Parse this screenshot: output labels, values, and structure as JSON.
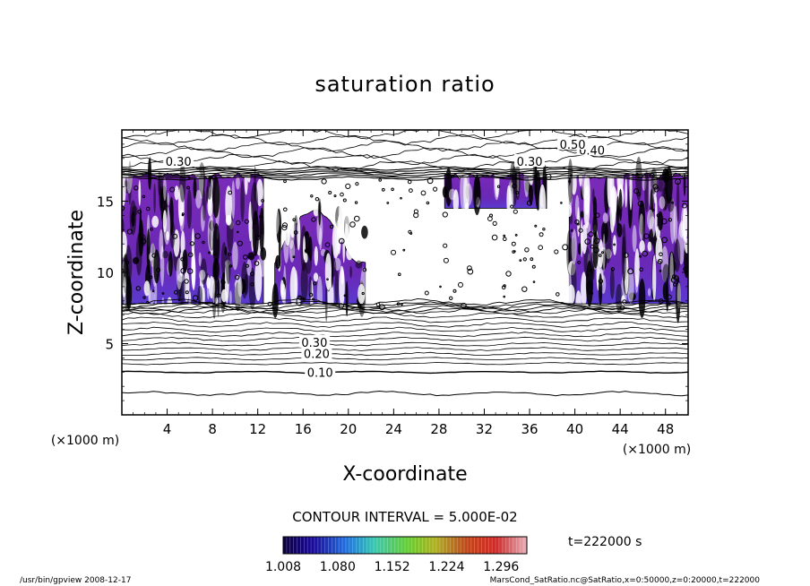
{
  "chart_data": {
    "type": "heatmap",
    "title": "saturation ratio",
    "xlabel": "X-coordinate",
    "ylabel": "Z-coordinate",
    "x_unit": "(×1000 m)",
    "y_unit": "(×1000 m)",
    "xlim": [
      0,
      50
    ],
    "ylim": [
      0,
      20
    ],
    "x_ticks": [
      4,
      8,
      12,
      16,
      20,
      24,
      28,
      32,
      36,
      40,
      44,
      48
    ],
    "y_ticks": [
      5,
      10,
      15
    ],
    "contour_interval_text": "CONTOUR INTERVAL = 5.000E-02",
    "contour_labels": [
      {
        "text": "0.10",
        "x": 17.5,
        "y": 3.0
      },
      {
        "text": "0.20",
        "x": 17.2,
        "y": 4.3
      },
      {
        "text": "0.30",
        "x": 17.0,
        "y": 5.1
      },
      {
        "text": "0.30",
        "x": 5.0,
        "y": 17.8
      },
      {
        "text": "0.30",
        "x": 36.0,
        "y": 17.8
      },
      {
        "text": "0.40",
        "x": 41.5,
        "y": 18.6
      },
      {
        "text": "0.50",
        "x": 39.8,
        "y": 19.0
      }
    ],
    "supersaturated_regions": [
      {
        "x_start": 0,
        "x_end": 12.5,
        "z_start": 7.8,
        "z_end": 17.0
      },
      {
        "x_start": 13.5,
        "x_end": 21.5,
        "z_start": 7.8,
        "z_end": 14.5
      },
      {
        "x_start": 28.5,
        "x_end": 37.5,
        "z_start": 14.5,
        "z_end": 17.0
      },
      {
        "x_start": 39.5,
        "x_end": 50,
        "z_start": 7.8,
        "z_end": 17.0
      }
    ],
    "colorbar": {
      "ticks": [
        "1.008",
        "1.080",
        "1.152",
        "1.224",
        "1.296"
      ],
      "min": 1.008,
      "max": 1.33,
      "colors": [
        "#0c003a",
        "#1a0a9e",
        "#1f6adf",
        "#38c8b0",
        "#5fcf38",
        "#b0b020",
        "#c04818",
        "#d02828",
        "#e8b0b8"
      ]
    },
    "time_label": "t=222000 s",
    "fill_color": "#7a2ab8"
  },
  "footer": {
    "left": "/usr/bin/gpview   2008-12-17",
    "right": "MarsCond_SatRatio.nc@SatRatio,x=0:50000,z=0:20000,t=222000"
  }
}
